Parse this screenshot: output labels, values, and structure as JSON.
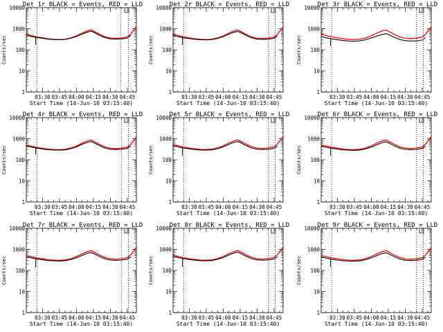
{
  "chart_data": {
    "type": "line",
    "layout": {
      "rows": 3,
      "cols": 3
    },
    "xlabel": "Start Time (14-Jun-10 03:15:40)",
    "ylabel": "Counts/sec",
    "yscale": "log",
    "ylim": [
      1,
      10000
    ],
    "y_ticks": [
      1,
      10,
      100,
      1000,
      10000
    ],
    "y_tick_labels": [
      "1",
      "10",
      "100",
      "1000",
      "10000"
    ],
    "xlim": [
      "03:15:40",
      "04:53:00"
    ],
    "x_ticks": [
      "03:30",
      "03:45",
      "04:00",
      "04:15",
      "04:30",
      "04:45"
    ],
    "series_colors": {
      "events": "#000000",
      "lld": "#ff0000"
    },
    "panels": [
      {
        "title": "Det 1r BLACK = Events, RED = LLD",
        "vlines": [
          "03:25",
          "04:39",
          "04:46"
        ],
        "x": [
          "03:15:40",
          "03:20",
          "03:25",
          "03:30",
          "03:35",
          "03:40",
          "03:45",
          "03:50",
          "03:55",
          "04:00",
          "04:05",
          "04:10",
          "04:13",
          "04:15",
          "04:20",
          "04:25",
          "04:30",
          "04:35",
          "04:40",
          "04:45",
          "04:48",
          "04:51",
          "04:53"
        ],
        "events": [
          500,
          430,
          380,
          350,
          320,
          305,
          300,
          310,
          350,
          430,
          560,
          700,
          760,
          690,
          500,
          380,
          330,
          320,
          330,
          360,
          480,
          null,
          null
        ],
        "lld": [
          560,
          470,
          410,
          370,
          335,
          315,
          305,
          320,
          365,
          460,
          620,
          800,
          880,
          780,
          560,
          420,
          360,
          345,
          360,
          410,
          560,
          900,
          1300
        ],
        "events_dip": {
          "x": "03:24",
          "y": 170
        }
      },
      {
        "title": "Det 2r BLACK = Events, RED = LLD",
        "vlines": [
          "03:25",
          "04:40",
          "04:46"
        ],
        "x": [
          "03:15:40",
          "03:20",
          "03:25",
          "03:30",
          "03:35",
          "03:40",
          "03:45",
          "03:50",
          "03:55",
          "04:00",
          "04:05",
          "04:10",
          "04:13",
          "04:15",
          "04:20",
          "04:25",
          "04:30",
          "04:35",
          "04:40",
          "04:45",
          "04:48",
          "04:51",
          "04:53"
        ],
        "events": [
          480,
          420,
          370,
          340,
          315,
          300,
          295,
          305,
          345,
          420,
          550,
          690,
          740,
          670,
          490,
          370,
          320,
          310,
          320,
          350,
          460,
          null,
          null
        ],
        "lld": [
          560,
          470,
          410,
          370,
          335,
          315,
          305,
          320,
          365,
          460,
          620,
          800,
          870,
          770,
          550,
          410,
          350,
          340,
          355,
          400,
          540,
          880,
          1250
        ],
        "events_dip": {
          "x": "03:24",
          "y": 170
        }
      },
      {
        "title": "Det 3r BLACK = Events, RED = LLD",
        "vlines": [
          "03:25",
          "04:40",
          "04:46"
        ],
        "x": [
          "03:15:40",
          "03:20",
          "03:25",
          "03:30",
          "03:35",
          "03:40",
          "03:45",
          "03:50",
          "03:55",
          "04:00",
          "04:05",
          "04:10",
          "04:13",
          "04:15",
          "04:20",
          "04:25",
          "04:30",
          "04:35",
          "04:40",
          "04:45",
          "04:48",
          "04:51",
          "04:53"
        ],
        "events": [
          420,
          370,
          330,
          300,
          275,
          260,
          255,
          265,
          300,
          360,
          450,
          540,
          580,
          530,
          400,
          310,
          270,
          260,
          265,
          290,
          380,
          null,
          null
        ],
        "lld": [
          560,
          470,
          410,
          370,
          335,
          315,
          305,
          320,
          365,
          460,
          620,
          800,
          860,
          760,
          550,
          410,
          350,
          340,
          355,
          400,
          540,
          880,
          1250
        ],
        "events_dip": {
          "x": "03:24",
          "y": 150
        }
      },
      {
        "title": "Det 4r BLACK = Events, RED = LLD",
        "vlines": [
          "03:25",
          "04:40",
          "04:46"
        ],
        "x": [
          "03:15:40",
          "03:20",
          "03:25",
          "03:30",
          "03:35",
          "03:40",
          "03:45",
          "03:50",
          "03:55",
          "04:00",
          "04:05",
          "04:10",
          "04:13",
          "04:15",
          "04:20",
          "04:25",
          "04:30",
          "04:35",
          "04:40",
          "04:45",
          "04:48",
          "04:51",
          "04:53"
        ],
        "events": [
          460,
          400,
          355,
          325,
          300,
          290,
          285,
          295,
          335,
          410,
          540,
          680,
          730,
          660,
          480,
          360,
          315,
          305,
          315,
          345,
          450,
          null,
          null
        ],
        "lld": [
          510,
          440,
          390,
          350,
          320,
          305,
          300,
          315,
          360,
          450,
          610,
          790,
          860,
          760,
          550,
          410,
          350,
          340,
          355,
          400,
          540,
          880,
          1250
        ],
        "events_dip": {
          "x": "03:24",
          "y": 180
        }
      },
      {
        "title": "Det 5r BLACK = Events, RED = LLD",
        "vlines": [
          "03:25",
          "04:40",
          "04:46"
        ],
        "x": [
          "03:15:40",
          "03:20",
          "03:25",
          "03:30",
          "03:35",
          "03:40",
          "03:45",
          "03:50",
          "03:55",
          "04:00",
          "04:05",
          "04:10",
          "04:13",
          "04:15",
          "04:20",
          "04:25",
          "04:30",
          "04:35",
          "04:40",
          "04:45",
          "04:48",
          "04:51",
          "04:53"
        ],
        "events": [
          470,
          410,
          360,
          330,
          305,
          290,
          285,
          295,
          335,
          410,
          540,
          680,
          730,
          660,
          480,
          360,
          315,
          305,
          315,
          345,
          450,
          null,
          null
        ],
        "lld": [
          540,
          460,
          400,
          360,
          330,
          310,
          305,
          320,
          365,
          460,
          620,
          800,
          870,
          770,
          560,
          420,
          360,
          345,
          360,
          410,
          560,
          900,
          1300
        ],
        "events_dip": {
          "x": "03:24",
          "y": 160
        }
      },
      {
        "title": "Det 6r BLACK = Events, RED = LLD",
        "vlines": [
          "03:25",
          "04:40",
          "04:46"
        ],
        "x": [
          "03:15:40",
          "03:20",
          "03:25",
          "03:30",
          "03:35",
          "03:40",
          "03:45",
          "03:50",
          "03:55",
          "04:00",
          "04:05",
          "04:10",
          "04:13",
          "04:15",
          "04:20",
          "04:25",
          "04:30",
          "04:35",
          "04:40",
          "04:45",
          "04:48",
          "04:51",
          "04:53"
        ],
        "events": [
          450,
          395,
          350,
          320,
          295,
          285,
          280,
          290,
          330,
          400,
          520,
          660,
          710,
          640,
          470,
          355,
          310,
          300,
          310,
          340,
          440,
          null,
          null
        ],
        "lld": [
          520,
          450,
          395,
          355,
          325,
          308,
          302,
          318,
          362,
          455,
          615,
          795,
          865,
          765,
          555,
          415,
          355,
          342,
          357,
          405,
          550,
          890,
          1280
        ],
        "events_dip": {
          "x": "03:24",
          "y": 160
        }
      },
      {
        "title": "Det 7r BLACK = Events, RED = LLD",
        "vlines": [
          "03:25",
          "04:40",
          "04:46"
        ],
        "x": [
          "03:15:40",
          "03:20",
          "03:25",
          "03:30",
          "03:35",
          "03:40",
          "03:45",
          "03:50",
          "03:55",
          "04:00",
          "04:05",
          "04:10",
          "04:13",
          "04:15",
          "04:20",
          "04:25",
          "04:30",
          "04:35",
          "04:40",
          "04:45",
          "04:48",
          "04:51",
          "04:53"
        ],
        "events": [
          450,
          395,
          350,
          320,
          295,
          285,
          280,
          290,
          330,
          400,
          520,
          660,
          700,
          640,
          470,
          355,
          310,
          300,
          310,
          340,
          440,
          null,
          null
        ],
        "lld": [
          520,
          450,
          395,
          355,
          325,
          308,
          302,
          318,
          362,
          455,
          615,
          795,
          865,
          765,
          555,
          415,
          355,
          342,
          357,
          405,
          550,
          890,
          1280
        ],
        "events_dip": {
          "x": "03:24",
          "y": 140
        }
      },
      {
        "title": "Det 8r BLACK = Events, RED = LLD",
        "vlines": [
          "03:25",
          "04:40",
          "04:46"
        ],
        "x": [
          "03:15:40",
          "03:20",
          "03:25",
          "03:30",
          "03:35",
          "03:40",
          "03:45",
          "03:50",
          "03:55",
          "04:00",
          "04:05",
          "04:10",
          "04:13",
          "04:15",
          "04:20",
          "04:25",
          "04:30",
          "04:35",
          "04:40",
          "04:45",
          "04:48",
          "04:51",
          "04:53"
        ],
        "events": [
          470,
          410,
          360,
          330,
          305,
          290,
          285,
          295,
          335,
          410,
          540,
          680,
          730,
          660,
          480,
          360,
          315,
          305,
          315,
          345,
          450,
          null,
          null
        ],
        "lld": [
          540,
          460,
          400,
          360,
          330,
          310,
          305,
          320,
          365,
          460,
          620,
          800,
          880,
          780,
          560,
          420,
          360,
          345,
          360,
          410,
          560,
          900,
          1300
        ],
        "events_dip": {
          "x": "03:24",
          "y": 150
        }
      },
      {
        "title": "Det 9r BLACK = Events, RED = LLD",
        "vlines": [
          "03:25",
          "04:40",
          "04:46"
        ],
        "x": [
          "03:15:40",
          "03:20",
          "03:25",
          "03:30",
          "03:35",
          "03:40",
          "03:45",
          "03:50",
          "03:55",
          "04:00",
          "04:05",
          "04:10",
          "04:13",
          "04:15",
          "04:20",
          "04:25",
          "04:30",
          "04:35",
          "04:40",
          "04:45",
          "04:48",
          "04:51",
          "04:53"
        ],
        "events": [
          440,
          385,
          340,
          310,
          290,
          278,
          274,
          284,
          322,
          392,
          505,
          640,
          690,
          625,
          460,
          348,
          304,
          294,
          304,
          334,
          430,
          null,
          null
        ],
        "lld": [
          520,
          450,
          395,
          355,
          325,
          308,
          302,
          318,
          362,
          455,
          615,
          795,
          860,
          760,
          550,
          410,
          350,
          340,
          355,
          400,
          540,
          880,
          1250
        ],
        "events_dip": {
          "x": "03:24",
          "y": 150
        }
      }
    ]
  }
}
